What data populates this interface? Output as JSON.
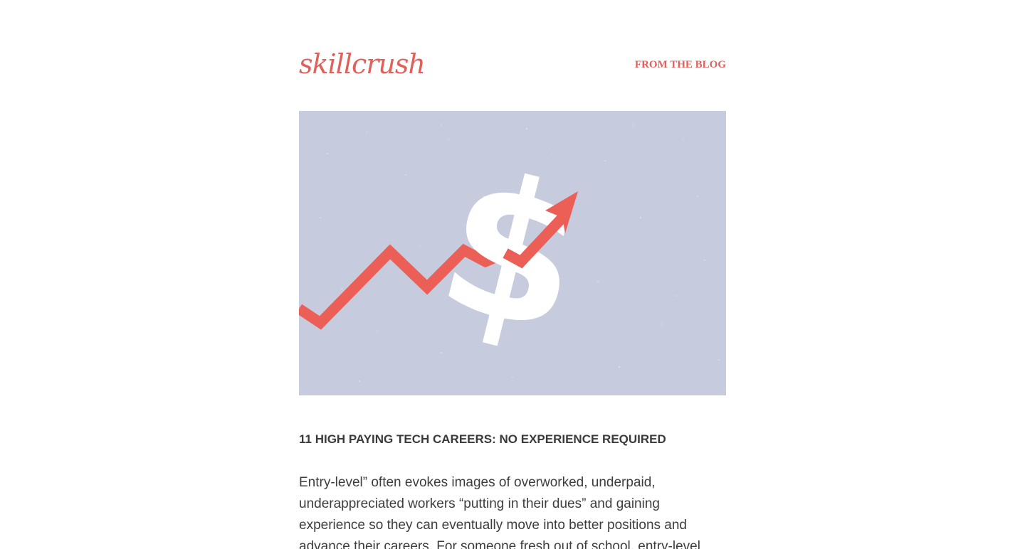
{
  "header": {
    "logo_text": "skillcrush",
    "nav_link": "FROM THE BLOG"
  },
  "hero": {
    "icon": "dollar-growth-icon"
  },
  "article": {
    "title": "11 HIGH PAYING TECH CAREERS: NO EXPERIENCE REQUIRED",
    "excerpt": "Entry-level” often evokes images of overworked, underpaid, underappreciated workers “putting in their dues” and gaining experience so they can eventually move into better positions and advance their careers. For someone fresh out of school, entry-level"
  },
  "colors": {
    "brand": "#e1605a",
    "hero_background": "#c6cbde",
    "text": "#3d3d3d"
  }
}
